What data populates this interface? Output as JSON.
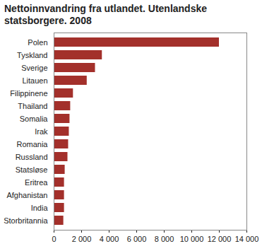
{
  "chart_data": {
    "type": "bar",
    "orientation": "horizontal",
    "title": "Nettoinnvandring fra utlandet. Utenlandske statsborgere. 2008",
    "categories": [
      "Polen",
      "Tyskland",
      "Sverige",
      "Litauen",
      "Filippinene",
      "Thailand",
      "Somalia",
      "Irak",
      "Romania",
      "Russland",
      "Statsløse",
      "Eritrea",
      "Afghanistan",
      "India",
      "Storbritannia"
    ],
    "values": [
      12000,
      3500,
      3000,
      2400,
      1400,
      1200,
      1150,
      1100,
      1050,
      1000,
      800,
      750,
      750,
      750,
      700
    ],
    "color": "#a3302b",
    "xlim": [
      0,
      14000
    ],
    "xticks": [
      0,
      {
        "value": 2000,
        "label": "2 000"
      },
      {
        "value": 4000,
        "label": "4 000"
      },
      {
        "value": 6000,
        "label": "6 000"
      },
      {
        "value": 8000,
        "label": "8 000"
      },
      {
        "value": 10000,
        "label": "10 000"
      },
      {
        "value": 12000,
        "label": "12 000"
      },
      {
        "value": 14000,
        "label": "14 000"
      }
    ],
    "grid": false
  }
}
